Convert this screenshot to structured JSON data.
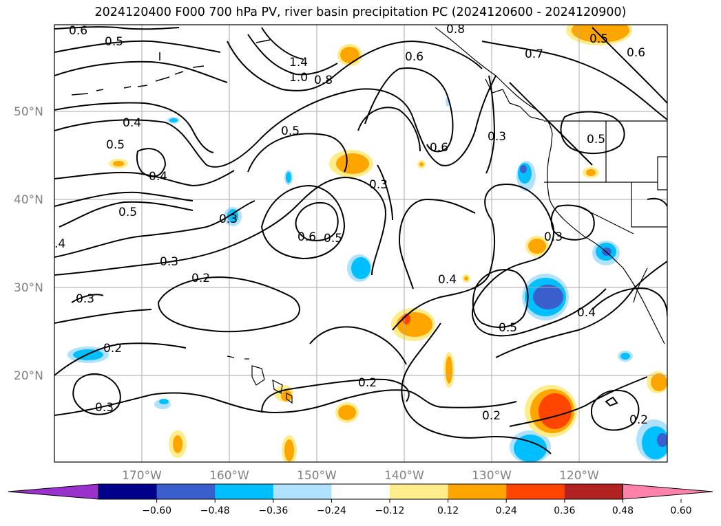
{
  "title": "2024120400 F000 700 hPa PV, river basin precipitation PC (2024120600 - 2024120900)",
  "lat_labels": [
    "50°N",
    "40°N",
    "30°N",
    "20°N"
  ],
  "lon_labels": [
    "170°W",
    "160°W",
    "150°W",
    "140°W",
    "130°W",
    "120°W"
  ],
  "colorbar": {
    "ticks": [
      "−0.60",
      "−0.48",
      "−0.36",
      "−0.24",
      "−0.12",
      "0.12",
      "0.24",
      "0.36",
      "0.48",
      "0.60"
    ],
    "colors": [
      "#9932cc",
      "#00008b",
      "#3a5fcd",
      "#00bfff",
      "#b0e2ff",
      "#ffffff",
      "#ffec8b",
      "#ffa500",
      "#ff4500",
      "#b22222",
      "#ff82ab"
    ]
  },
  "contour_labels": [
    "0.6",
    "0.5",
    "1.4",
    "1.0",
    "0.8",
    "0.6",
    "0.8",
    "0.7",
    "0.5",
    "0.6",
    "0.4",
    "0.5",
    "0.4",
    "0.6",
    "0.3",
    "0.5",
    "0.5",
    "0.3",
    "0.5",
    "0.3",
    "0.6",
    "0.5",
    "0.3",
    ".4",
    "0.3",
    "0.2",
    "0.3",
    "0.4",
    "0.5",
    "0.4",
    "0.2",
    "0.2",
    "0.3",
    "0.2",
    "0.2"
  ],
  "shading_colors": {
    "neg_light": "#b0e2ff",
    "neg_mid": "#00bfff",
    "neg_dark": "#3a5fcd",
    "pos_light": "#ffec8b",
    "pos_mid": "#ffa500",
    "pos_dark": "#ff4500"
  }
}
